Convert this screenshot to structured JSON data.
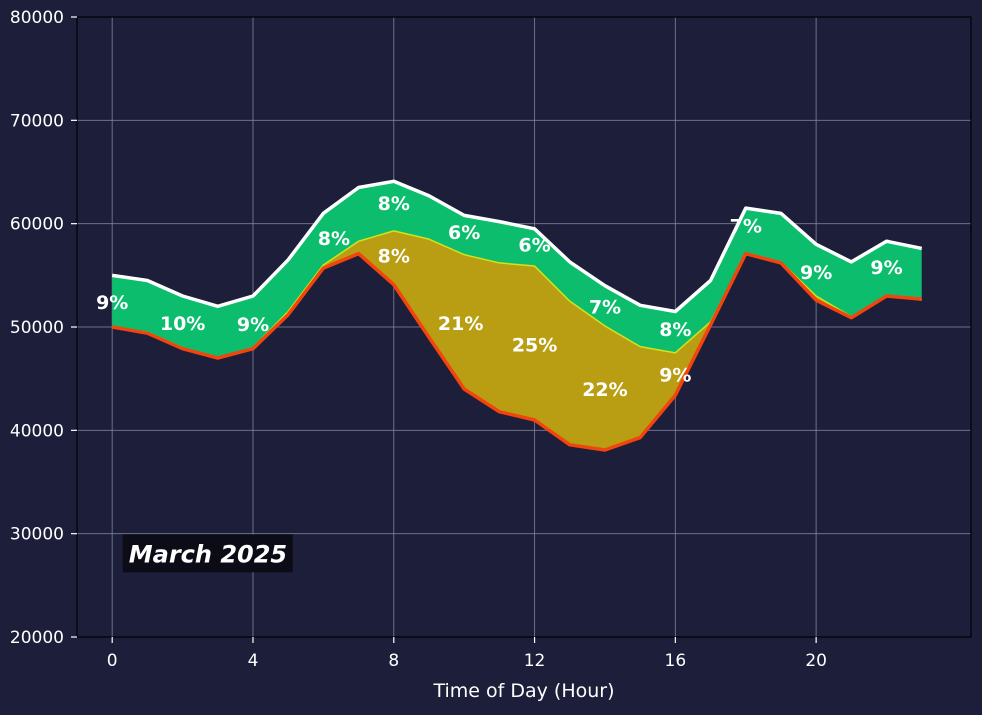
{
  "chart_data": {
    "type": "area",
    "xlabel": "Time of Day (Hour)",
    "ylabel": "",
    "xlim": [
      -1,
      24.4
    ],
    "ylim": [
      20000,
      80000
    ],
    "xticks": [
      0,
      4,
      8,
      12,
      16,
      20
    ],
    "yticks": [
      20000,
      30000,
      40000,
      50000,
      60000,
      70000,
      80000
    ],
    "grid": true,
    "x": [
      0,
      1,
      2,
      3,
      4,
      5,
      6,
      7,
      8,
      9,
      10,
      11,
      12,
      13,
      14,
      15,
      16,
      17,
      18,
      19,
      20,
      21,
      22,
      23
    ],
    "series": [
      {
        "values": [
          55000,
          54500,
          53000,
          52000,
          53000,
          56500,
          61000,
          63500,
          64100,
          62700,
          60800,
          60200,
          59500,
          56300,
          54000,
          52100,
          51500,
          54500,
          61500,
          61000,
          58000,
          56300,
          58300,
          57600
        ]
      },
      {
        "values": [
          50000,
          49500,
          48000,
          47000,
          48000,
          51500,
          56000,
          58300,
          59300,
          58500,
          57000,
          56200,
          55900,
          52500,
          50100,
          48100,
          47500,
          50500,
          57000,
          56300,
          53000,
          51000,
          53000,
          52600
        ]
      },
      {
        "values": [
          50000,
          49400,
          47900,
          47000,
          47900,
          51200,
          55700,
          57100,
          54100,
          49000,
          44000,
          41800,
          41000,
          38600,
          38100,
          39300,
          43400,
          50200,
          57100,
          56200,
          52600,
          50900,
          53000,
          52700
        ]
      }
    ],
    "labels": [
      {
        "x": 0,
        "y": 52400,
        "text": "9%"
      },
      {
        "x": 2,
        "y": 50400,
        "text": "10%"
      },
      {
        "x": 4,
        "y": 50300,
        "text": "9%"
      },
      {
        "x": 6.3,
        "y": 58600,
        "text": "8%"
      },
      {
        "x": 8,
        "y": 62000,
        "text": "8%"
      },
      {
        "x": 8,
        "y": 56900,
        "text": "8%"
      },
      {
        "x": 10,
        "y": 59200,
        "text": "6%"
      },
      {
        "x": 9.9,
        "y": 50400,
        "text": "21%"
      },
      {
        "x": 12,
        "y": 58000,
        "text": "6%"
      },
      {
        "x": 12,
        "y": 48300,
        "text": "25%"
      },
      {
        "x": 14,
        "y": 52000,
        "text": "7%"
      },
      {
        "x": 14,
        "y": 44000,
        "text": "22%"
      },
      {
        "x": 16,
        "y": 49800,
        "text": "8%"
      },
      {
        "x": 16,
        "y": 45400,
        "text": "9%"
      },
      {
        "x": 18,
        "y": 59800,
        "text": "7%"
      },
      {
        "x": 20,
        "y": 55300,
        "text": "9%"
      },
      {
        "x": 22,
        "y": 55800,
        "text": "9%"
      }
    ],
    "annotation": {
      "text": "March 2025",
      "x": 0.3,
      "y": 28000
    },
    "colors": {
      "background": "#1c1e3a",
      "band_upper": "#0dbd6e",
      "band_lower": "#b99e14",
      "line_top": "#ffffff",
      "line_mid": "#d4e21a",
      "line_bottom": "#f2440c",
      "grid": "#8a8ca6",
      "annotation_bg": "#0c0c16"
    }
  }
}
